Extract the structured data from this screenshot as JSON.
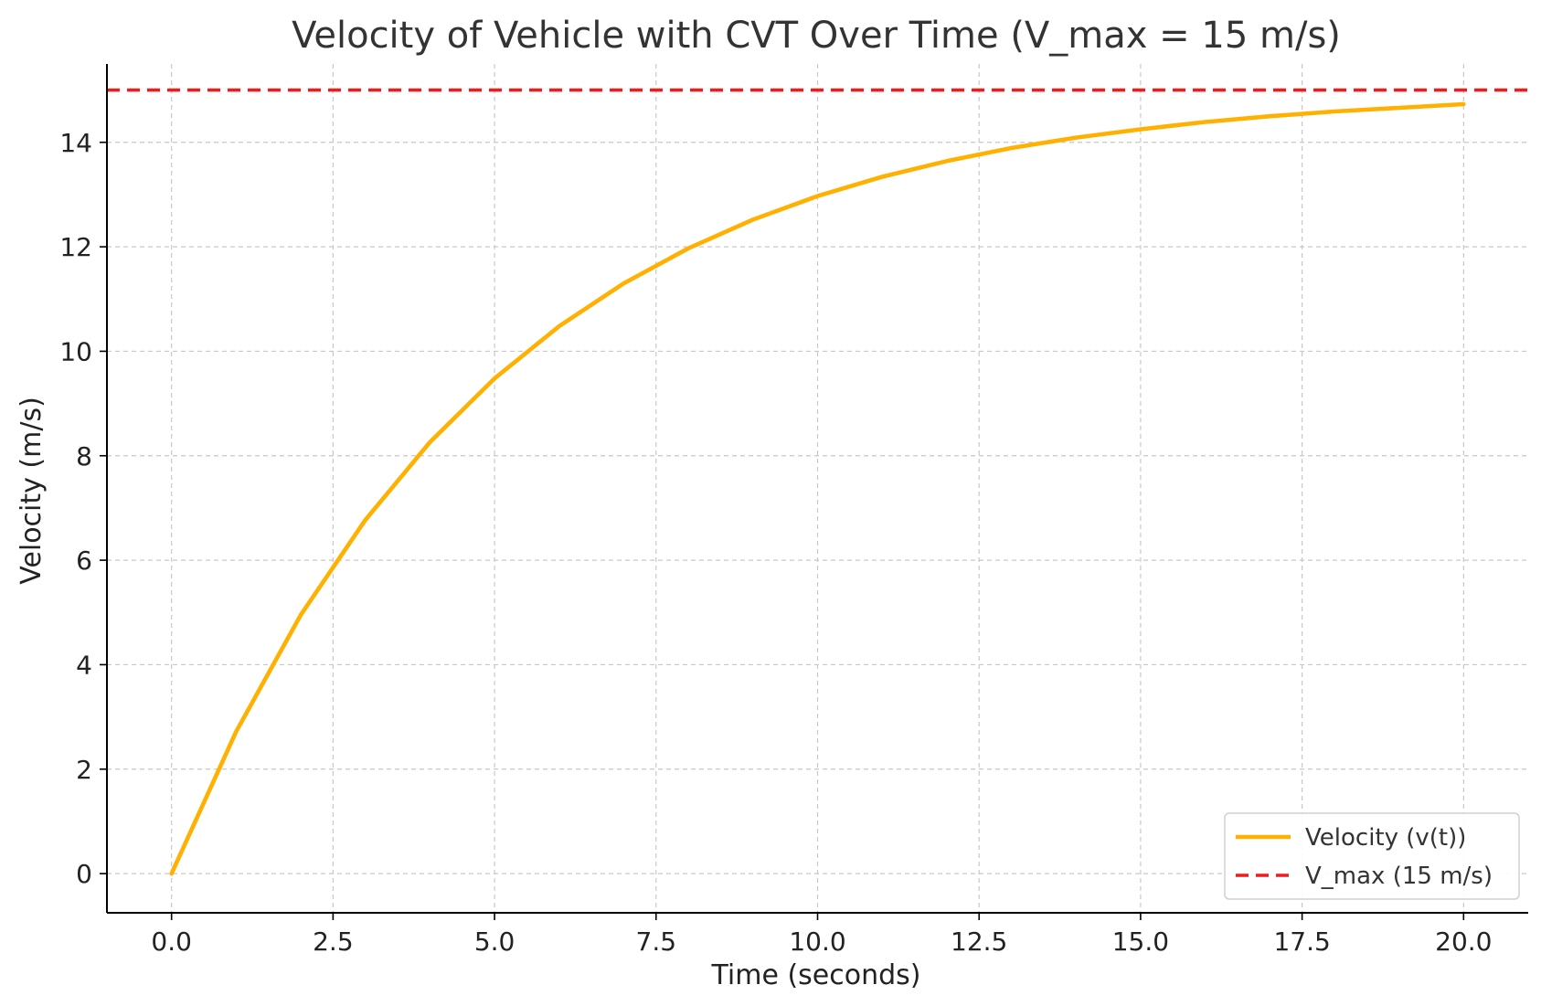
{
  "chart_data": {
    "type": "line",
    "title": "Velocity of Vehicle with CVT Over Time (V_max = 15 m/s)",
    "xlabel": "Time (seconds)",
    "ylabel": "Velocity (m/s)",
    "xlim": [
      -1.0,
      21.0
    ],
    "ylim": [
      -0.75,
      15.5
    ],
    "x_ticks": [
      0.0,
      2.5,
      5.0,
      7.5,
      10.0,
      12.5,
      15.0,
      17.5,
      20.0
    ],
    "x_tick_labels": [
      "0.0",
      "2.5",
      "5.0",
      "7.5",
      "10.0",
      "12.5",
      "15.0",
      "17.5",
      "20.0"
    ],
    "y_ticks": [
      0,
      2,
      4,
      6,
      8,
      10,
      12,
      14
    ],
    "y_tick_labels": [
      "0",
      "2",
      "4",
      "6",
      "8",
      "10",
      "12",
      "14"
    ],
    "grid": true,
    "legend_position": "bottom-right",
    "series": [
      {
        "name": "Velocity (v(t))",
        "color": "#FFB000",
        "style": "solid",
        "x": [
          0,
          1,
          2,
          3,
          4,
          5,
          6,
          7,
          8,
          9,
          10,
          11,
          12,
          13,
          14,
          15,
          16,
          17,
          18,
          19,
          20
        ],
        "y": [
          0.0,
          2.72,
          4.95,
          6.77,
          8.26,
          9.48,
          10.48,
          11.3,
          11.97,
          12.52,
          12.97,
          13.34,
          13.64,
          13.89,
          14.09,
          14.25,
          14.39,
          14.5,
          14.59,
          14.66,
          14.73
        ]
      },
      {
        "name": "V_max (15 m/s)",
        "color": "#EE1C1C",
        "style": "dashed",
        "x": [
          -1.0,
          21.0
        ],
        "y": [
          15,
          15
        ]
      }
    ]
  }
}
